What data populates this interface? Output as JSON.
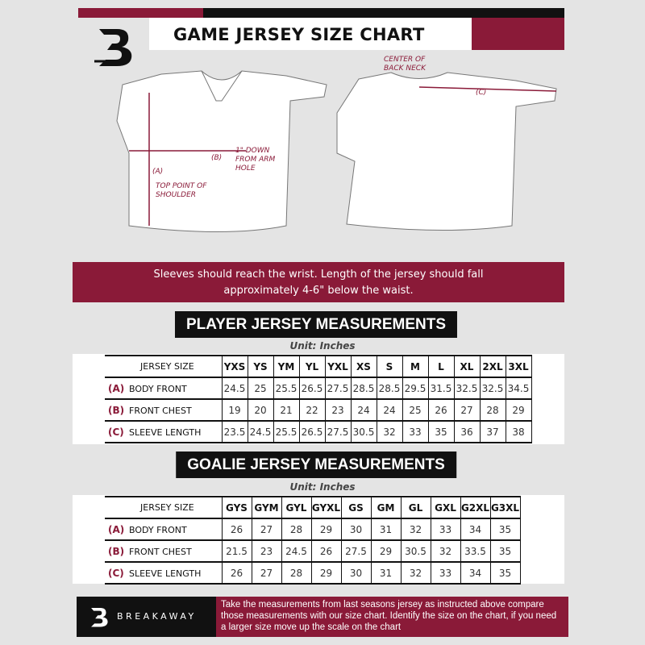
{
  "header": {
    "title": "GAME JERSEY SIZE CHART",
    "logo_letter": "B"
  },
  "diagram": {
    "front": {
      "label_a": "(A)",
      "label_a_note": "TOP POINT OF SHOULDER",
      "label_b": "(B)",
      "label_b_note": "1\" DOWN FROM ARM HOLE"
    },
    "back": {
      "label_c": "(C)",
      "label_c_note": "CENTER OF BACK NECK"
    }
  },
  "banner": {
    "line1": "Sleeves should reach the wrist. Length of the jersey should fall",
    "line2": "approximately 4-6\" below the waist."
  },
  "player": {
    "title": "PLAYER JERSEY MEASUREMENTS",
    "unit": "Unit: Inches",
    "header_label": "JERSEY SIZE",
    "sizes": [
      "YXS",
      "YS",
      "YM",
      "YL",
      "YXL",
      "XS",
      "S",
      "M",
      "L",
      "XL",
      "2XL",
      "3XL"
    ],
    "rows": [
      {
        "letter": "(A)",
        "label": "BODY FRONT",
        "values": [
          "24.5",
          "25",
          "25.5",
          "26.5",
          "27.5",
          "28.5",
          "28.5",
          "29.5",
          "31.5",
          "32.5",
          "32.5",
          "34.5"
        ]
      },
      {
        "letter": "(B)",
        "label": "FRONT CHEST",
        "values": [
          "19",
          "20",
          "21",
          "22",
          "23",
          "24",
          "24",
          "25",
          "26",
          "27",
          "28",
          "29"
        ]
      },
      {
        "letter": "(C)",
        "label": "SLEEVE LENGTH",
        "values": [
          "23.5",
          "24.5",
          "25.5",
          "26.5",
          "27.5",
          "30.5",
          "32",
          "33",
          "35",
          "36",
          "37",
          "38"
        ]
      }
    ]
  },
  "goalie": {
    "title": "GOALIE JERSEY MEASUREMENTS",
    "unit": "Unit: Inches",
    "header_label": "JERSEY SIZE",
    "sizes": [
      "GYS",
      "GYM",
      "GYL",
      "GYXL",
      "GS",
      "GM",
      "GL",
      "GXL",
      "G2XL",
      "G3XL"
    ],
    "rows": [
      {
        "letter": "(A)",
        "label": "BODY FRONT",
        "values": [
          "26",
          "27",
          "28",
          "29",
          "30",
          "31",
          "32",
          "33",
          "34",
          "35"
        ]
      },
      {
        "letter": "(B)",
        "label": "FRONT CHEST",
        "values": [
          "21.5",
          "23",
          "24.5",
          "26",
          "27.5",
          "29",
          "30.5",
          "32",
          "33.5",
          "35"
        ]
      },
      {
        "letter": "(C)",
        "label": "SLEEVE LENGTH",
        "values": [
          "26",
          "27",
          "28",
          "29",
          "30",
          "31",
          "32",
          "33",
          "34",
          "35"
        ]
      }
    ]
  },
  "footer": {
    "brand": "BREAKAWAY",
    "text": "Take the measurements from last seasons jersey as instructed above compare those measurements  with our size chart. Identify the size on the chart, if you need a larger size move up the scale on the chart"
  },
  "colors": {
    "accent": "#8a1a38",
    "dark": "#111111",
    "background": "#e4e4e4"
  }
}
